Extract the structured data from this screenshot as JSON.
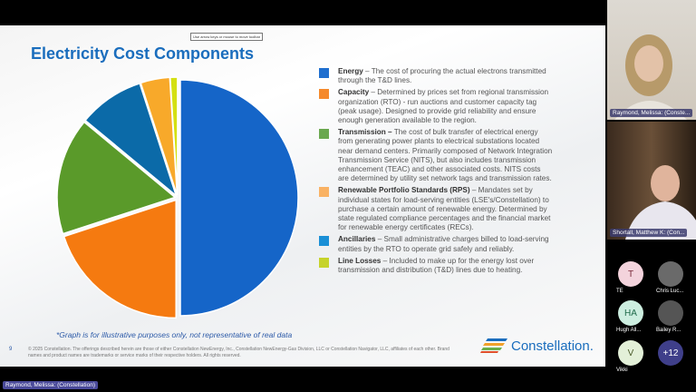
{
  "slide": {
    "title": "Electricity Cost Components",
    "toolbar_tooltip": "Use arrow keys or mouse to move toolbar",
    "legend": [
      {
        "term": "Energy",
        "desc": " – The cost of procuring the actual electrons transmitted through the T&D lines.",
        "color": "#1f6fcf"
      },
      {
        "term": "Capacity",
        "desc": " – Determined by prices set from regional transmission organization (RTO) - run auctions and customer capacity tag (peak usage). Designed to provide grid reliability and ensure enough generation available to the region.",
        "color": "#f58a2c"
      },
      {
        "term": "Transmission –",
        "desc": " The cost of bulk transfer of electrical energy from generating power plants to electrical substations located near demand centers. Primarily composed of Network Integration Transmission Service (NITS), but also includes transmission enhancement (TEAC) and other associated costs. NITS costs are determined by utility set network tags and transmission rates.",
        "color": "#6aa84f"
      },
      {
        "term": "Renewable Portfolio Standards (RPS)",
        "desc": " – Mandates set by individual states for load-serving entities (LSE's/Constellation) to purchase a certain amount of renewable energy. Determined by state regulated compliance percentages and the financial market for renewable energy certificates (RECs).",
        "color": "#f9b264"
      },
      {
        "term": "Ancillaries",
        "desc": " – Small administrative charges billed to load-serving entities by the RTO to operate grid safely and reliably.",
        "color": "#1a8fd6"
      },
      {
        "term": "Line Losses",
        "desc": " – Included to make up for the energy lost over transmission and distribution (T&D) lines due to heating.",
        "color": "#c6d32a"
      }
    ],
    "note": "*Graph is for illustrative purposes only, not representative of real data",
    "page_number": "9",
    "legal": "© 2025 Constellation. The offerings described herein are those of either Constellation NewEnergy, Inc., Constellation NewEnergy-Gas Division, LLC or Constellation Navigator, LLC, affiliates of each other. Brand names and product names are trademarks or service marks of their respective holders. All rights reserved.",
    "logo_text": "Constellation."
  },
  "chart_data": {
    "type": "pie",
    "categories": [
      "Energy",
      "Capacity",
      "Transmission",
      "Ancillaries",
      "Renewable Portfolio Standards (RPS)",
      "Line Losses"
    ],
    "values": [
      50,
      20,
      16,
      9,
      4,
      1
    ],
    "colors": [
      "#1565c8",
      "#f57a10",
      "#5a9a2a",
      "#0b6aa8",
      "#f8a92a",
      "#d4e012"
    ]
  },
  "participants": {
    "video": [
      {
        "name": "Raymond, Melissa: (Conste..."
      },
      {
        "name": "Shortall, Matthew K: (Con..."
      }
    ],
    "grid": [
      {
        "initials": "T",
        "label": "TE",
        "bg": "#f3d3dc",
        "fg": "#7a2a3a"
      },
      {
        "initials": "",
        "label": "Chris Luc...",
        "bg": "#6a6a6a",
        "fg": "#fff"
      },
      {
        "initials": "HA",
        "label": "Hugh All...",
        "bg": "#cdeee0",
        "fg": "#1f6a4a"
      },
      {
        "initials": "",
        "label": "Bailey R...",
        "bg": "#555",
        "fg": "#fff"
      },
      {
        "initials": "V",
        "label": "Vikki",
        "bg": "#e3f0d8",
        "fg": "#4a5a2a"
      },
      {
        "initials": "+12",
        "label": "",
        "bg": "#3f3f8a",
        "fg": "#fff"
      }
    ],
    "active_speaker": "Raymond, Melissa: (Constellation)"
  }
}
